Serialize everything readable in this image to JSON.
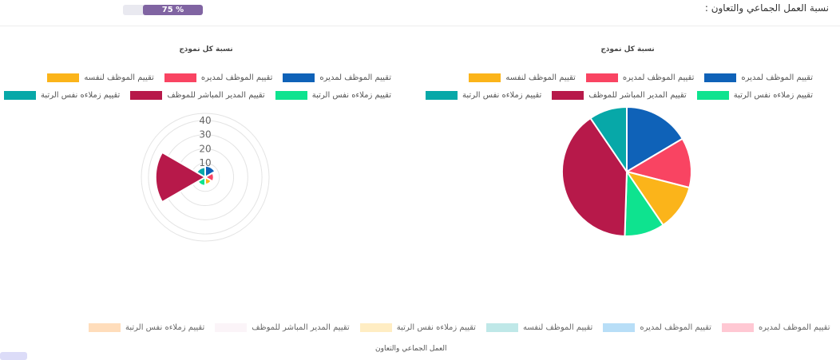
{
  "header": {
    "title": "نسبة العمل الجماعي والتعاون :",
    "progress_label": "75 %",
    "progress_value": 0.75
  },
  "colors": {
    "blue": "#0f62b8",
    "pink": "#f94462",
    "orange": "#fbb41a",
    "green": "#0ee38f",
    "crimson": "#b7194a",
    "teal": "#07a8a8"
  },
  "chart_data": [
    {
      "type": "polarArea",
      "title": "نسبة كل نموذج",
      "legend_position": "top",
      "r_ticks": [
        "10",
        "20",
        "30",
        "40"
      ],
      "rlim": [
        0,
        45
      ],
      "series": [
        {
          "name": "تقييم الموظف لمديره",
          "value": 8,
          "color": "#0f62b8"
        },
        {
          "name": "تقييم الموظف لمديره",
          "value": 6,
          "color": "#f94462"
        },
        {
          "name": "تقييم الموظف لنفسه",
          "value": 5,
          "color": "#fbb41a"
        },
        {
          "name": "تقييم زملاءه نفس الرتبة",
          "value": 6,
          "color": "#0ee38f"
        },
        {
          "name": "تقييم المدير المباشر للموظف",
          "value": 35,
          "color": "#b7194a"
        },
        {
          "name": "تقييم زملاءه نفس الرتبة",
          "value": 7,
          "color": "#07a8a8"
        }
      ]
    },
    {
      "type": "pie",
      "title": "نسبة كل نموذج",
      "legend_position": "top",
      "series": [
        {
          "name": "تقييم الموظف لمديره",
          "value": 16.5,
          "color": "#0f62b8"
        },
        {
          "name": "تقييم الموظف لمديره",
          "value": 12.5,
          "color": "#f94462"
        },
        {
          "name": "تقييم الموظف لنفسه",
          "value": 11.5,
          "color": "#fbb41a"
        },
        {
          "name": "تقييم زملاءه نفس الرتبة",
          "value": 10,
          "color": "#0ee38f"
        },
        {
          "name": "تقييم المدير المباشر للموظف",
          "value": 40,
          "color": "#b7194a"
        },
        {
          "name": "تقييم زملاءه نفس الرتبة",
          "value": 9.5,
          "color": "#07a8a8"
        }
      ]
    },
    {
      "type": "bar",
      "xlabel": "العمل الجماعي والتعاون",
      "legend_position": "top",
      "series": [
        {
          "name": "تقييم الموظف لمديره",
          "color": "#ff6384"
        },
        {
          "name": "تقييم الموظف لمديره",
          "color": "#36a2eb"
        },
        {
          "name": "تقييم الموظف لنفسه",
          "color": "#4bc0c0"
        },
        {
          "name": "تقييم زملاءه نفس الرتبة",
          "color": "#ffcd56"
        },
        {
          "name": "تقييم المدير المباشر للموظف",
          "color": "#f4e0ec"
        },
        {
          "name": "تقييم زملاءه نفس الرتبة",
          "color": "#ff9f40"
        }
      ]
    }
  ]
}
